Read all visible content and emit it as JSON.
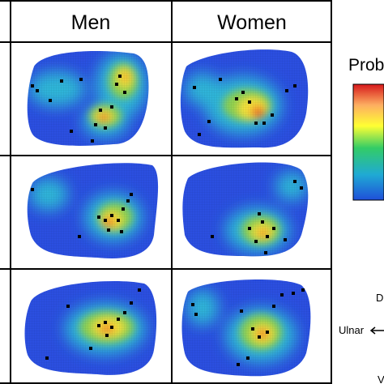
{
  "header": {
    "columns": [
      "Men",
      "Women"
    ]
  },
  "legend": {
    "title": "Prob",
    "colormap": [
      "#d7191c",
      "#fdae61",
      "#ffff33",
      "#33cc66",
      "#1faad4",
      "#1f4fd9"
    ]
  },
  "orientation": {
    "dorsal_abbrev": "D",
    "ulnar_label": "Ulnar",
    "volar_abbrev": "V"
  },
  "panels": [
    {
      "column": "Men",
      "row": 1
    },
    {
      "column": "Women",
      "row": 1
    },
    {
      "column": "Men",
      "row": 2
    },
    {
      "column": "Women",
      "row": 2
    },
    {
      "column": "Men",
      "row": 3
    },
    {
      "column": "Women",
      "row": 3
    }
  ]
}
